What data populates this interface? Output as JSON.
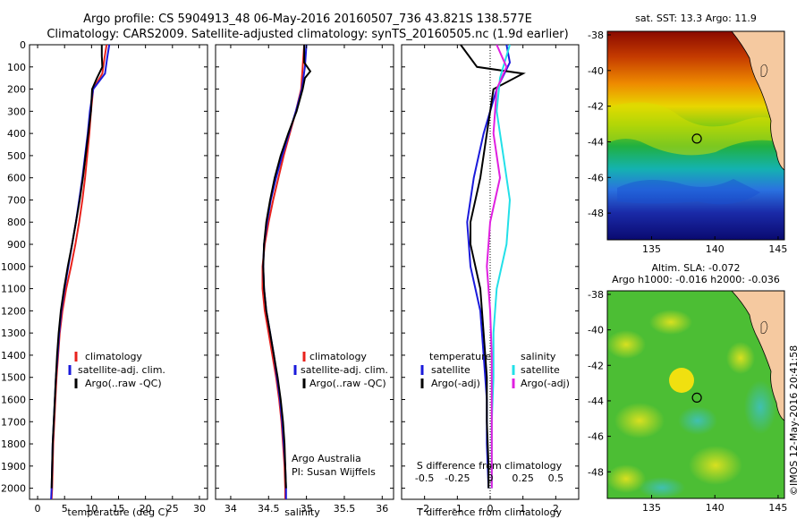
{
  "header": {
    "line1": "Argo profile: CS 5904913_48 06-May-2016 20160507_736 43.821S 138.577E",
    "line2": "Climatology: CARS2009. Satellite-adjusted climatology: synTS_20160505.nc (1.9d earlier)"
  },
  "credit": "©IMOS 12-May-2016 20:41:58",
  "colors": {
    "climatology": "#e8221c",
    "satellite": "#1a1adb",
    "argo": "#000000",
    "sat_salinity": "#22e0e8",
    "argo_salinity": "#e020e0"
  },
  "chart_data": [
    {
      "type": "line",
      "xlabel": "temperature (deg C)",
      "ylim": [
        2050,
        0
      ],
      "xlim": [
        -1.5,
        31.5
      ],
      "xticks": [
        0,
        5,
        10,
        15,
        20,
        25,
        30
      ],
      "yticks": [
        0,
        100,
        200,
        300,
        400,
        500,
        600,
        700,
        800,
        900,
        1000,
        1100,
        1200,
        1300,
        1400,
        1500,
        1600,
        1700,
        1800,
        1900,
        2000
      ],
      "legend": [
        "climatology",
        "satellite-adj. clim.",
        "Argo(..raw -QC)"
      ],
      "series": [
        {
          "name": "climatology",
          "color": "#e8221c",
          "points": [
            [
              12.8,
              0
            ],
            [
              12.4,
              60
            ],
            [
              12.0,
              130
            ],
            [
              10.3,
              200
            ],
            [
              9.9,
              300
            ],
            [
              9.6,
              400
            ],
            [
              9.2,
              500
            ],
            [
              8.8,
              600
            ],
            [
              8.3,
              700
            ],
            [
              7.7,
              800
            ],
            [
              7.0,
              900
            ],
            [
              6.2,
              1000
            ],
            [
              5.3,
              1100
            ],
            [
              4.6,
              1200
            ],
            [
              4.1,
              1300
            ],
            [
              3.8,
              1400
            ],
            [
              3.5,
              1500
            ],
            [
              3.3,
              1600
            ],
            [
              3.1,
              1700
            ],
            [
              2.9,
              1800
            ],
            [
              2.8,
              1900
            ],
            [
              2.7,
              2000
            ],
            [
              2.6,
              2050
            ]
          ]
        },
        {
          "name": "satellite-adj. clim.",
          "color": "#1a1adb",
          "points": [
            [
              13.3,
              0
            ],
            [
              12.9,
              60
            ],
            [
              12.5,
              130
            ],
            [
              10.3,
              200
            ],
            [
              9.7,
              300
            ],
            [
              9.3,
              400
            ],
            [
              8.8,
              500
            ],
            [
              8.3,
              600
            ],
            [
              7.7,
              700
            ],
            [
              7.1,
              800
            ],
            [
              6.4,
              900
            ],
            [
              5.7,
              1000
            ],
            [
              5.0,
              1100
            ],
            [
              4.4,
              1200
            ],
            [
              4.0,
              1300
            ],
            [
              3.7,
              1400
            ],
            [
              3.4,
              1500
            ],
            [
              3.2,
              1600
            ],
            [
              3.0,
              1700
            ],
            [
              2.8,
              1800
            ],
            [
              2.7,
              1900
            ],
            [
              2.6,
              2000
            ],
            [
              2.5,
              2050
            ]
          ]
        },
        {
          "name": "Argo(..raw -QC)",
          "color": "#000000",
          "points": [
            [
              11.9,
              0
            ],
            [
              11.9,
              50
            ],
            [
              12.0,
              100
            ],
            [
              11.0,
              150
            ],
            [
              10.1,
              200
            ],
            [
              9.9,
              300
            ],
            [
              9.4,
              400
            ],
            [
              8.9,
              500
            ],
            [
              8.4,
              600
            ],
            [
              7.8,
              700
            ],
            [
              7.1,
              800
            ],
            [
              6.4,
              900
            ],
            [
              5.6,
              1000
            ],
            [
              4.9,
              1100
            ],
            [
              4.3,
              1200
            ],
            [
              3.9,
              1300
            ],
            [
              3.6,
              1400
            ],
            [
              3.4,
              1500
            ],
            [
              3.2,
              1600
            ],
            [
              3.0,
              1700
            ],
            [
              2.8,
              1800
            ],
            [
              2.7,
              1900
            ],
            [
              2.6,
              2000
            ]
          ]
        }
      ]
    },
    {
      "type": "line",
      "xlabel": "salinity",
      "ylim": [
        2050,
        0
      ],
      "xlim": [
        33.8,
        36.15
      ],
      "xticks": [
        34,
        34.5,
        35,
        35.5,
        36
      ],
      "legend": [
        "climatology",
        "satellite-adj. clim.",
        "Argo(..raw -QC)"
      ],
      "annotation": [
        "Argo Australia",
        "PI: Susan Wijffels"
      ],
      "series": [
        {
          "name": "climatology",
          "color": "#e8221c",
          "points": [
            [
              34.97,
              0
            ],
            [
              34.95,
              100
            ],
            [
              34.93,
              200
            ],
            [
              34.86,
              300
            ],
            [
              34.78,
              400
            ],
            [
              34.7,
              500
            ],
            [
              34.63,
              600
            ],
            [
              34.56,
              700
            ],
            [
              34.5,
              800
            ],
            [
              34.45,
              900
            ],
            [
              34.42,
              1000
            ],
            [
              34.42,
              1100
            ],
            [
              34.45,
              1200
            ],
            [
              34.5,
              1300
            ],
            [
              34.55,
              1400
            ],
            [
              34.6,
              1500
            ],
            [
              34.64,
              1600
            ],
            [
              34.67,
              1700
            ],
            [
              34.69,
              1800
            ],
            [
              34.71,
              1900
            ],
            [
              34.72,
              2000
            ],
            [
              34.72,
              2050
            ]
          ]
        },
        {
          "name": "satellite-adj. clim.",
          "color": "#1a1adb",
          "points": [
            [
              35.0,
              0
            ],
            [
              34.98,
              100
            ],
            [
              34.94,
              200
            ],
            [
              34.86,
              300
            ],
            [
              34.77,
              400
            ],
            [
              34.68,
              500
            ],
            [
              34.6,
              600
            ],
            [
              34.53,
              700
            ],
            [
              34.48,
              800
            ],
            [
              34.44,
              900
            ],
            [
              34.43,
              1000
            ],
            [
              34.44,
              1100
            ],
            [
              34.47,
              1200
            ],
            [
              34.52,
              1300
            ],
            [
              34.57,
              1400
            ],
            [
              34.61,
              1500
            ],
            [
              34.65,
              1600
            ],
            [
              34.68,
              1700
            ],
            [
              34.7,
              1800
            ],
            [
              34.72,
              1900
            ],
            [
              34.73,
              2000
            ],
            [
              34.73,
              2050
            ]
          ]
        },
        {
          "name": "Argo(..raw -QC)",
          "color": "#000000",
          "points": [
            [
              34.97,
              0
            ],
            [
              34.97,
              80
            ],
            [
              35.05,
              120
            ],
            [
              34.98,
              150
            ],
            [
              34.95,
              200
            ],
            [
              34.87,
              300
            ],
            [
              34.76,
              400
            ],
            [
              34.66,
              500
            ],
            [
              34.58,
              600
            ],
            [
              34.52,
              700
            ],
            [
              34.47,
              800
            ],
            [
              34.44,
              900
            ],
            [
              34.43,
              1000
            ],
            [
              34.44,
              1100
            ],
            [
              34.47,
              1200
            ],
            [
              34.52,
              1300
            ],
            [
              34.57,
              1400
            ],
            [
              34.62,
              1500
            ],
            [
              34.66,
              1600
            ],
            [
              34.69,
              1700
            ],
            [
              34.71,
              1800
            ],
            [
              34.72,
              1900
            ],
            [
              34.73,
              2000
            ]
          ]
        }
      ]
    },
    {
      "type": "line",
      "xlabel": "T difference from climatology",
      "top_xlabel": "S difference from climatology",
      "ylim": [
        2050,
        0
      ],
      "xlim": [
        -2.7,
        2.7
      ],
      "xticks": [
        -2,
        -1,
        0,
        1,
        2
      ],
      "top_xticks": [
        "-0.5",
        "-0.25",
        "0",
        "0.25",
        "0.5"
      ],
      "legend_headers": [
        "temperature",
        "salinity"
      ],
      "legend_left": [
        "satellite",
        "Argo(-adj)"
      ],
      "legend_right": [
        "satellite",
        "Argo(-adj)"
      ],
      "series": [
        {
          "name": "temperature satellite",
          "color": "#1a1adb",
          "points": [
            [
              0.5,
              0
            ],
            [
              0.6,
              80
            ],
            [
              0.2,
              200
            ],
            [
              -0.2,
              400
            ],
            [
              -0.5,
              600
            ],
            [
              -0.7,
              800
            ],
            [
              -0.6,
              1000
            ],
            [
              -0.3,
              1200
            ],
            [
              -0.2,
              1400
            ],
            [
              -0.1,
              1600
            ],
            [
              -0.1,
              1800
            ],
            [
              -0.05,
              2000
            ]
          ]
        },
        {
          "name": "temperature Argo(-adj)",
          "color": "#000000",
          "points": [
            [
              -0.9,
              0
            ],
            [
              -0.4,
              100
            ],
            [
              1.0,
              130
            ],
            [
              0.1,
              200
            ],
            [
              -0.1,
              400
            ],
            [
              -0.3,
              600
            ],
            [
              -0.6,
              800
            ],
            [
              -0.6,
              900
            ],
            [
              -0.3,
              1100
            ],
            [
              -0.2,
              1300
            ],
            [
              -0.1,
              1500
            ],
            [
              -0.1,
              1700
            ],
            [
              -0.05,
              1900
            ],
            [
              -0.05,
              2000
            ]
          ]
        },
        {
          "name": "salinity satellite",
          "color": "#22e0e8",
          "points": [
            [
              0.6,
              0
            ],
            [
              0.3,
              150
            ],
            [
              0.2,
              300
            ],
            [
              0.4,
              500
            ],
            [
              0.6,
              700
            ],
            [
              0.5,
              900
            ],
            [
              0.2,
              1100
            ],
            [
              0.1,
              1300
            ],
            [
              0.1,
              1500
            ],
            [
              0.05,
              1700
            ],
            [
              0.05,
              2000
            ]
          ]
        },
        {
          "name": "salinity Argo(-adj)",
          "color": "#e020e0",
          "points": [
            [
              0.2,
              0
            ],
            [
              0.5,
              100
            ],
            [
              0.2,
              200
            ],
            [
              0.1,
              400
            ],
            [
              0.3,
              600
            ],
            [
              0.0,
              800
            ],
            [
              -0.1,
              1000
            ],
            [
              0.0,
              1200
            ],
            [
              0.05,
              1400
            ],
            [
              0.05,
              1700
            ],
            [
              0.05,
              2000
            ]
          ]
        }
      ]
    },
    {
      "type": "heatmap",
      "title": "sat. SST: 13.3 Argo: 11.9",
      "xlim": [
        131.5,
        145.5
      ],
      "ylim": [
        -49.5,
        -37.8
      ],
      "xticks": [
        135,
        140,
        145
      ],
      "yticks": [
        -38,
        -40,
        -42,
        -44,
        -46,
        -48
      ],
      "marker": [
        138.577,
        -43.821
      ]
    },
    {
      "type": "heatmap",
      "title_lines": [
        "Altim. SLA: -0.072",
        "Argo h1000: -0.016 h2000: -0.036"
      ],
      "xlim": [
        131.5,
        145.5
      ],
      "ylim": [
        -49.5,
        -37.8
      ],
      "xticks": [
        135,
        140,
        145
      ],
      "yticks": [
        -38,
        -40,
        -42,
        -44,
        -46,
        -48
      ],
      "marker": [
        138.577,
        -43.821
      ]
    }
  ]
}
